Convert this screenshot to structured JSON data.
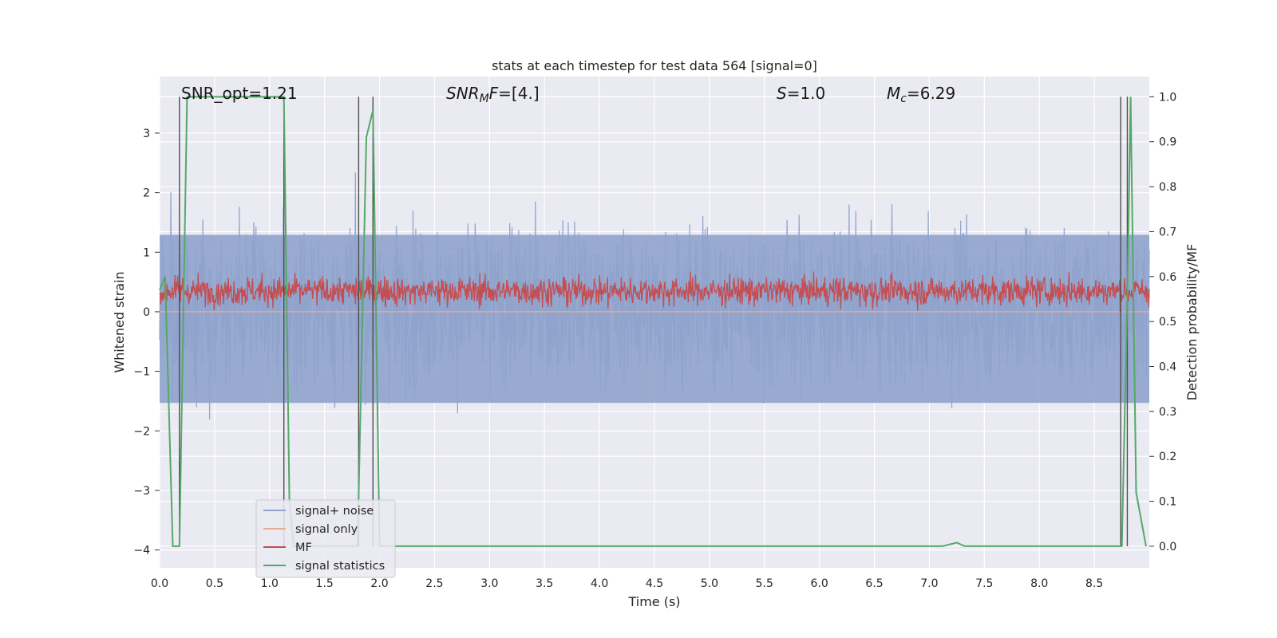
{
  "chart_data": {
    "type": "line",
    "title": "stats at each timestep for test data 564 [signal=0]",
    "xlabel": "Time (s)",
    "ylabel": "Whitened strain",
    "y2label": "Detection probability/MF",
    "xlim": [
      0.0,
      9.0
    ],
    "ylim": [
      -4.3,
      3.95
    ],
    "y2lim": [
      -0.048,
      1.045
    ],
    "xticks": [
      "0.0",
      "0.5",
      "1.0",
      "1.5",
      "2.0",
      "2.5",
      "3.0",
      "3.5",
      "4.0",
      "4.5",
      "5.0",
      "5.5",
      "6.0",
      "6.5",
      "7.0",
      "7.5",
      "8.0",
      "8.5"
    ],
    "yticks": [
      "3",
      "2",
      "1",
      "0",
      "−1",
      "−2",
      "−3",
      "−4"
    ],
    "y2ticks": [
      "1.0",
      "0.9",
      "0.8",
      "0.7",
      "0.6",
      "0.5",
      "0.4",
      "0.3",
      "0.2",
      "0.1",
      "0.0"
    ],
    "grid": true,
    "legend_position": "lower-left",
    "annotations": {
      "snr_opt": "SNR_opt=1.21",
      "snr_mf_var": "SNR",
      "snr_mf_sub": "M",
      "snr_mf_var2": "F",
      "snr_mf_val": "=[4.]",
      "s_var": "S",
      "s_val": "=1.0",
      "mc_var": "M",
      "mc_sub": "c",
      "mc_val": "=6.29"
    },
    "series": [
      {
        "name": "signal+ noise",
        "color": "#8fa3cc",
        "axis": "left",
        "description_range": [
          -4.0,
          3.6
        ],
        "envelope_upper": 1.9,
        "envelope_lower": -1.7
      },
      {
        "name": "signal only",
        "color": "#e8a98f",
        "axis": "left",
        "constant_value": 0.0
      },
      {
        "name": "MF",
        "color": "#c44e52",
        "axis": "left",
        "mean": 0.35,
        "range": [
          0.0,
          0.95
        ]
      },
      {
        "name": "signal statistics",
        "color": "#55a868",
        "axis": "right",
        "x": [
          0.0,
          0.05,
          0.12,
          0.18,
          0.25,
          1.13,
          1.18,
          1.22,
          1.8,
          1.88,
          1.94,
          2.0,
          7.12,
          7.25,
          7.32,
          8.75,
          8.8,
          8.83,
          8.88,
          8.97
        ],
        "y": [
          0.57,
          0.6,
          0.0,
          0.0,
          1.0,
          1.0,
          0.1,
          0.0,
          0.0,
          0.91,
          0.97,
          0.0,
          0.0,
          0.008,
          0.0,
          0.0,
          0.55,
          1.0,
          0.12,
          0.0
        ]
      }
    ],
    "vertical_lines": [
      0.18,
      1.13,
      1.81,
      1.94,
      8.74,
      8.8
    ],
    "colors": {
      "plot_bg": "#eaeaf2",
      "grid": "#ffffff",
      "vline": "#4d4d4d"
    }
  }
}
